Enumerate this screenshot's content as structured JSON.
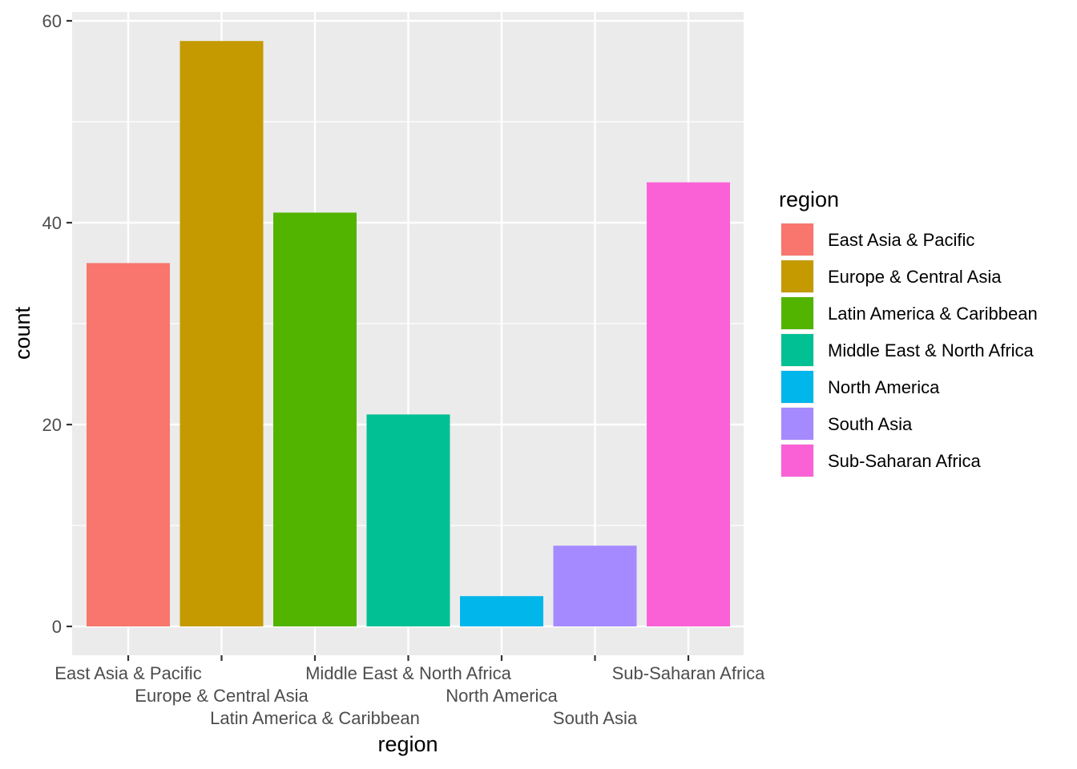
{
  "chart_data": {
    "type": "bar",
    "title": "",
    "xlabel": "region",
    "ylabel": "count",
    "categories": [
      "East Asia & Pacific",
      "Europe & Central Asia",
      "Latin America & Caribbean",
      "Middle East & North Africa",
      "North America",
      "South Asia",
      "Sub-Saharan Africa"
    ],
    "values": [
      36,
      58,
      41,
      21,
      3,
      8,
      44
    ],
    "colors": [
      "#F8766D",
      "#C49A00",
      "#53B400",
      "#00C094",
      "#00B6EB",
      "#A58AFF",
      "#FB61D7"
    ],
    "ylim": [
      0,
      60
    ],
    "yticks": [
      0,
      20,
      40,
      60
    ],
    "yticks_minor": [
      10,
      30,
      50
    ],
    "grid": true,
    "panel_background": "#EBEBEB",
    "grid_color": "#FFFFFF",
    "legend": {
      "title": "region",
      "placement": "right",
      "entries": [
        "East Asia & Pacific",
        "Europe & Central Asia",
        "Latin America & Caribbean",
        "Middle East & North Africa",
        "North America",
        "South Asia",
        "Sub-Saharan Africa"
      ]
    }
  }
}
